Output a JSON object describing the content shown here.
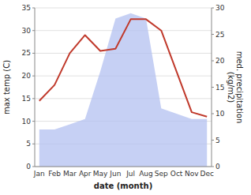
{
  "chart_data": {
    "type": "line",
    "x_label": "date (month)",
    "y_label": "max temp (C)",
    "y2_label": "med. precipitation\n(kg/m2)",
    "categories": [
      "Jan",
      "Feb",
      "Mar",
      "Apr",
      "May",
      "Jun",
      "Jul",
      "Aug",
      "Sep",
      "Oct",
      "Nov",
      "Dec"
    ],
    "series": [
      {
        "type": "area",
        "axis": "y2",
        "color": "#b3c0f0",
        "values": [
          7.0,
          7.0,
          8.0,
          9.0,
          18.0,
          28.0,
          29.0,
          28.0,
          11.0,
          10.0,
          9.0,
          9.0
        ]
      },
      {
        "type": "line",
        "color": "#c0392b",
        "values": [
          14.5,
          18.0,
          25.0,
          29.0,
          25.5,
          26.0,
          32.5,
          32.5,
          30.0,
          21.0,
          12.0,
          11.0
        ]
      }
    ],
    "ylim": [
      0,
      35
    ],
    "yticks": [
      0,
      5,
      10,
      15,
      20,
      25,
      30,
      35
    ],
    "y2lim": [
      0,
      30
    ],
    "y2ticks": [
      0,
      5,
      10,
      15,
      20,
      25,
      30
    ],
    "grid": true
  }
}
